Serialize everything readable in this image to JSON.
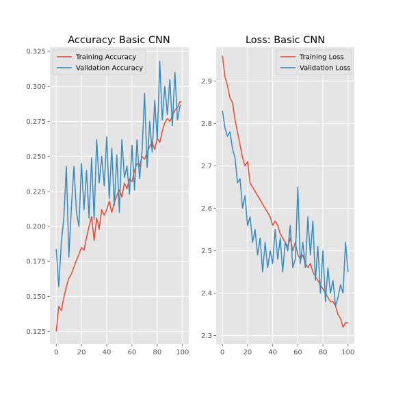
{
  "colors": {
    "training": "#e24a33",
    "validation": "#348abd"
  },
  "chart_data": [
    {
      "type": "line",
      "title": "Accuracy: Basic CNN",
      "xlabel": "",
      "ylabel": "",
      "xlim": [
        -5,
        105
      ],
      "ylim": [
        0.116,
        0.328
      ],
      "xticks": [
        0,
        20,
        40,
        60,
        80,
        100
      ],
      "yticks": [
        0.125,
        0.15,
        0.175,
        0.2,
        0.225,
        0.25,
        0.275,
        0.3,
        0.325
      ],
      "ytick_labels": [
        "0.125",
        "0.150",
        "0.175",
        "0.200",
        "0.225",
        "0.250",
        "0.275",
        "0.300",
        "0.325"
      ],
      "grid": true,
      "legend_position": "top-left",
      "series": [
        {
          "name": "Training Accuracy",
          "color": "training",
          "x": [
            0,
            2,
            4,
            6,
            8,
            10,
            12,
            14,
            16,
            18,
            20,
            22,
            24,
            26,
            28,
            30,
            32,
            34,
            36,
            38,
            40,
            42,
            44,
            46,
            48,
            50,
            52,
            54,
            56,
            58,
            60,
            62,
            64,
            66,
            68,
            70,
            72,
            74,
            76,
            78,
            80,
            82,
            84,
            86,
            88,
            90,
            92,
            94,
            96,
            98,
            99
          ],
          "values": [
            0.125,
            0.143,
            0.14,
            0.149,
            0.157,
            0.163,
            0.166,
            0.171,
            0.176,
            0.18,
            0.185,
            0.183,
            0.192,
            0.2,
            0.207,
            0.19,
            0.206,
            0.198,
            0.212,
            0.208,
            0.212,
            0.218,
            0.21,
            0.217,
            0.222,
            0.226,
            0.221,
            0.231,
            0.227,
            0.234,
            0.232,
            0.24,
            0.245,
            0.243,
            0.25,
            0.248,
            0.253,
            0.257,
            0.26,
            0.255,
            0.263,
            0.26,
            0.268,
            0.274,
            0.277,
            0.275,
            0.279,
            0.283,
            0.285,
            0.289,
            0.289
          ]
        },
        {
          "name": "Validation Accuracy",
          "color": "validation",
          "x": [
            0,
            2,
            4,
            6,
            8,
            10,
            12,
            14,
            16,
            18,
            20,
            22,
            24,
            26,
            28,
            30,
            32,
            34,
            36,
            38,
            40,
            42,
            44,
            46,
            48,
            50,
            52,
            54,
            56,
            58,
            60,
            62,
            64,
            66,
            68,
            70,
            72,
            74,
            76,
            78,
            80,
            82,
            84,
            86,
            88,
            90,
            92,
            94,
            96,
            98,
            99
          ],
          "values": [
            0.184,
            0.157,
            0.188,
            0.206,
            0.243,
            0.178,
            0.214,
            0.243,
            0.21,
            0.2,
            0.245,
            0.212,
            0.24,
            0.206,
            0.249,
            0.205,
            0.262,
            0.231,
            0.25,
            0.229,
            0.264,
            0.22,
            0.256,
            0.215,
            0.251,
            0.21,
            0.262,
            0.235,
            0.243,
            0.223,
            0.258,
            0.226,
            0.262,
            0.234,
            0.254,
            0.295,
            0.242,
            0.275,
            0.253,
            0.29,
            0.262,
            0.318,
            0.276,
            0.3,
            0.28,
            0.305,
            0.272,
            0.31,
            0.276,
            0.286,
            0.287
          ]
        }
      ]
    },
    {
      "type": "line",
      "title": "Loss: Basic CNN",
      "xlabel": "",
      "ylabel": "",
      "xlim": [
        -5,
        105
      ],
      "ylim": [
        2.28,
        2.98
      ],
      "xticks": [
        0,
        20,
        40,
        60,
        80,
        100
      ],
      "yticks": [
        2.3,
        2.4,
        2.5,
        2.6,
        2.7,
        2.8,
        2.9
      ],
      "ytick_labels": [
        "2.3",
        "2.4",
        "2.5",
        "2.6",
        "2.7",
        "2.8",
        "2.9"
      ],
      "grid": true,
      "legend_position": "top-right",
      "series": [
        {
          "name": "Training Loss",
          "color": "training",
          "x": [
            0,
            2,
            4,
            6,
            8,
            10,
            12,
            14,
            16,
            18,
            20,
            22,
            24,
            26,
            28,
            30,
            32,
            34,
            36,
            38,
            40,
            42,
            44,
            46,
            48,
            50,
            52,
            54,
            56,
            58,
            60,
            62,
            64,
            66,
            68,
            70,
            72,
            74,
            76,
            78,
            80,
            82,
            84,
            86,
            88,
            90,
            92,
            94,
            96,
            98,
            100
          ],
          "values": [
            2.96,
            2.91,
            2.89,
            2.86,
            2.85,
            2.81,
            2.78,
            2.75,
            2.72,
            2.7,
            2.71,
            2.66,
            2.65,
            2.64,
            2.63,
            2.62,
            2.61,
            2.6,
            2.59,
            2.58,
            2.56,
            2.57,
            2.56,
            2.54,
            2.53,
            2.52,
            2.51,
            2.53,
            2.5,
            2.52,
            2.49,
            2.48,
            2.49,
            2.47,
            2.46,
            2.47,
            2.45,
            2.44,
            2.43,
            2.42,
            2.41,
            2.4,
            2.39,
            2.38,
            2.38,
            2.37,
            2.35,
            2.34,
            2.32,
            2.33,
            2.33
          ]
        },
        {
          "name": "Validation Loss",
          "color": "validation",
          "x": [
            0,
            2,
            4,
            6,
            8,
            10,
            12,
            14,
            16,
            18,
            20,
            22,
            24,
            26,
            28,
            30,
            32,
            34,
            36,
            38,
            40,
            42,
            44,
            46,
            48,
            50,
            52,
            54,
            56,
            58,
            60,
            62,
            64,
            66,
            68,
            70,
            72,
            74,
            76,
            78,
            80,
            82,
            84,
            86,
            88,
            90,
            92,
            94,
            96,
            98,
            100
          ],
          "values": [
            2.83,
            2.79,
            2.77,
            2.78,
            2.74,
            2.72,
            2.66,
            2.67,
            2.6,
            2.63,
            2.56,
            2.58,
            2.52,
            2.55,
            2.49,
            2.53,
            2.45,
            2.52,
            2.46,
            2.5,
            2.47,
            2.55,
            2.48,
            2.53,
            2.45,
            2.52,
            2.5,
            2.56,
            2.46,
            2.48,
            2.65,
            2.47,
            2.52,
            2.46,
            2.58,
            2.49,
            2.57,
            2.43,
            2.51,
            2.4,
            2.5,
            2.38,
            2.46,
            2.4,
            2.43,
            2.37,
            2.39,
            2.42,
            2.4,
            2.52,
            2.45
          ]
        }
      ]
    }
  ]
}
